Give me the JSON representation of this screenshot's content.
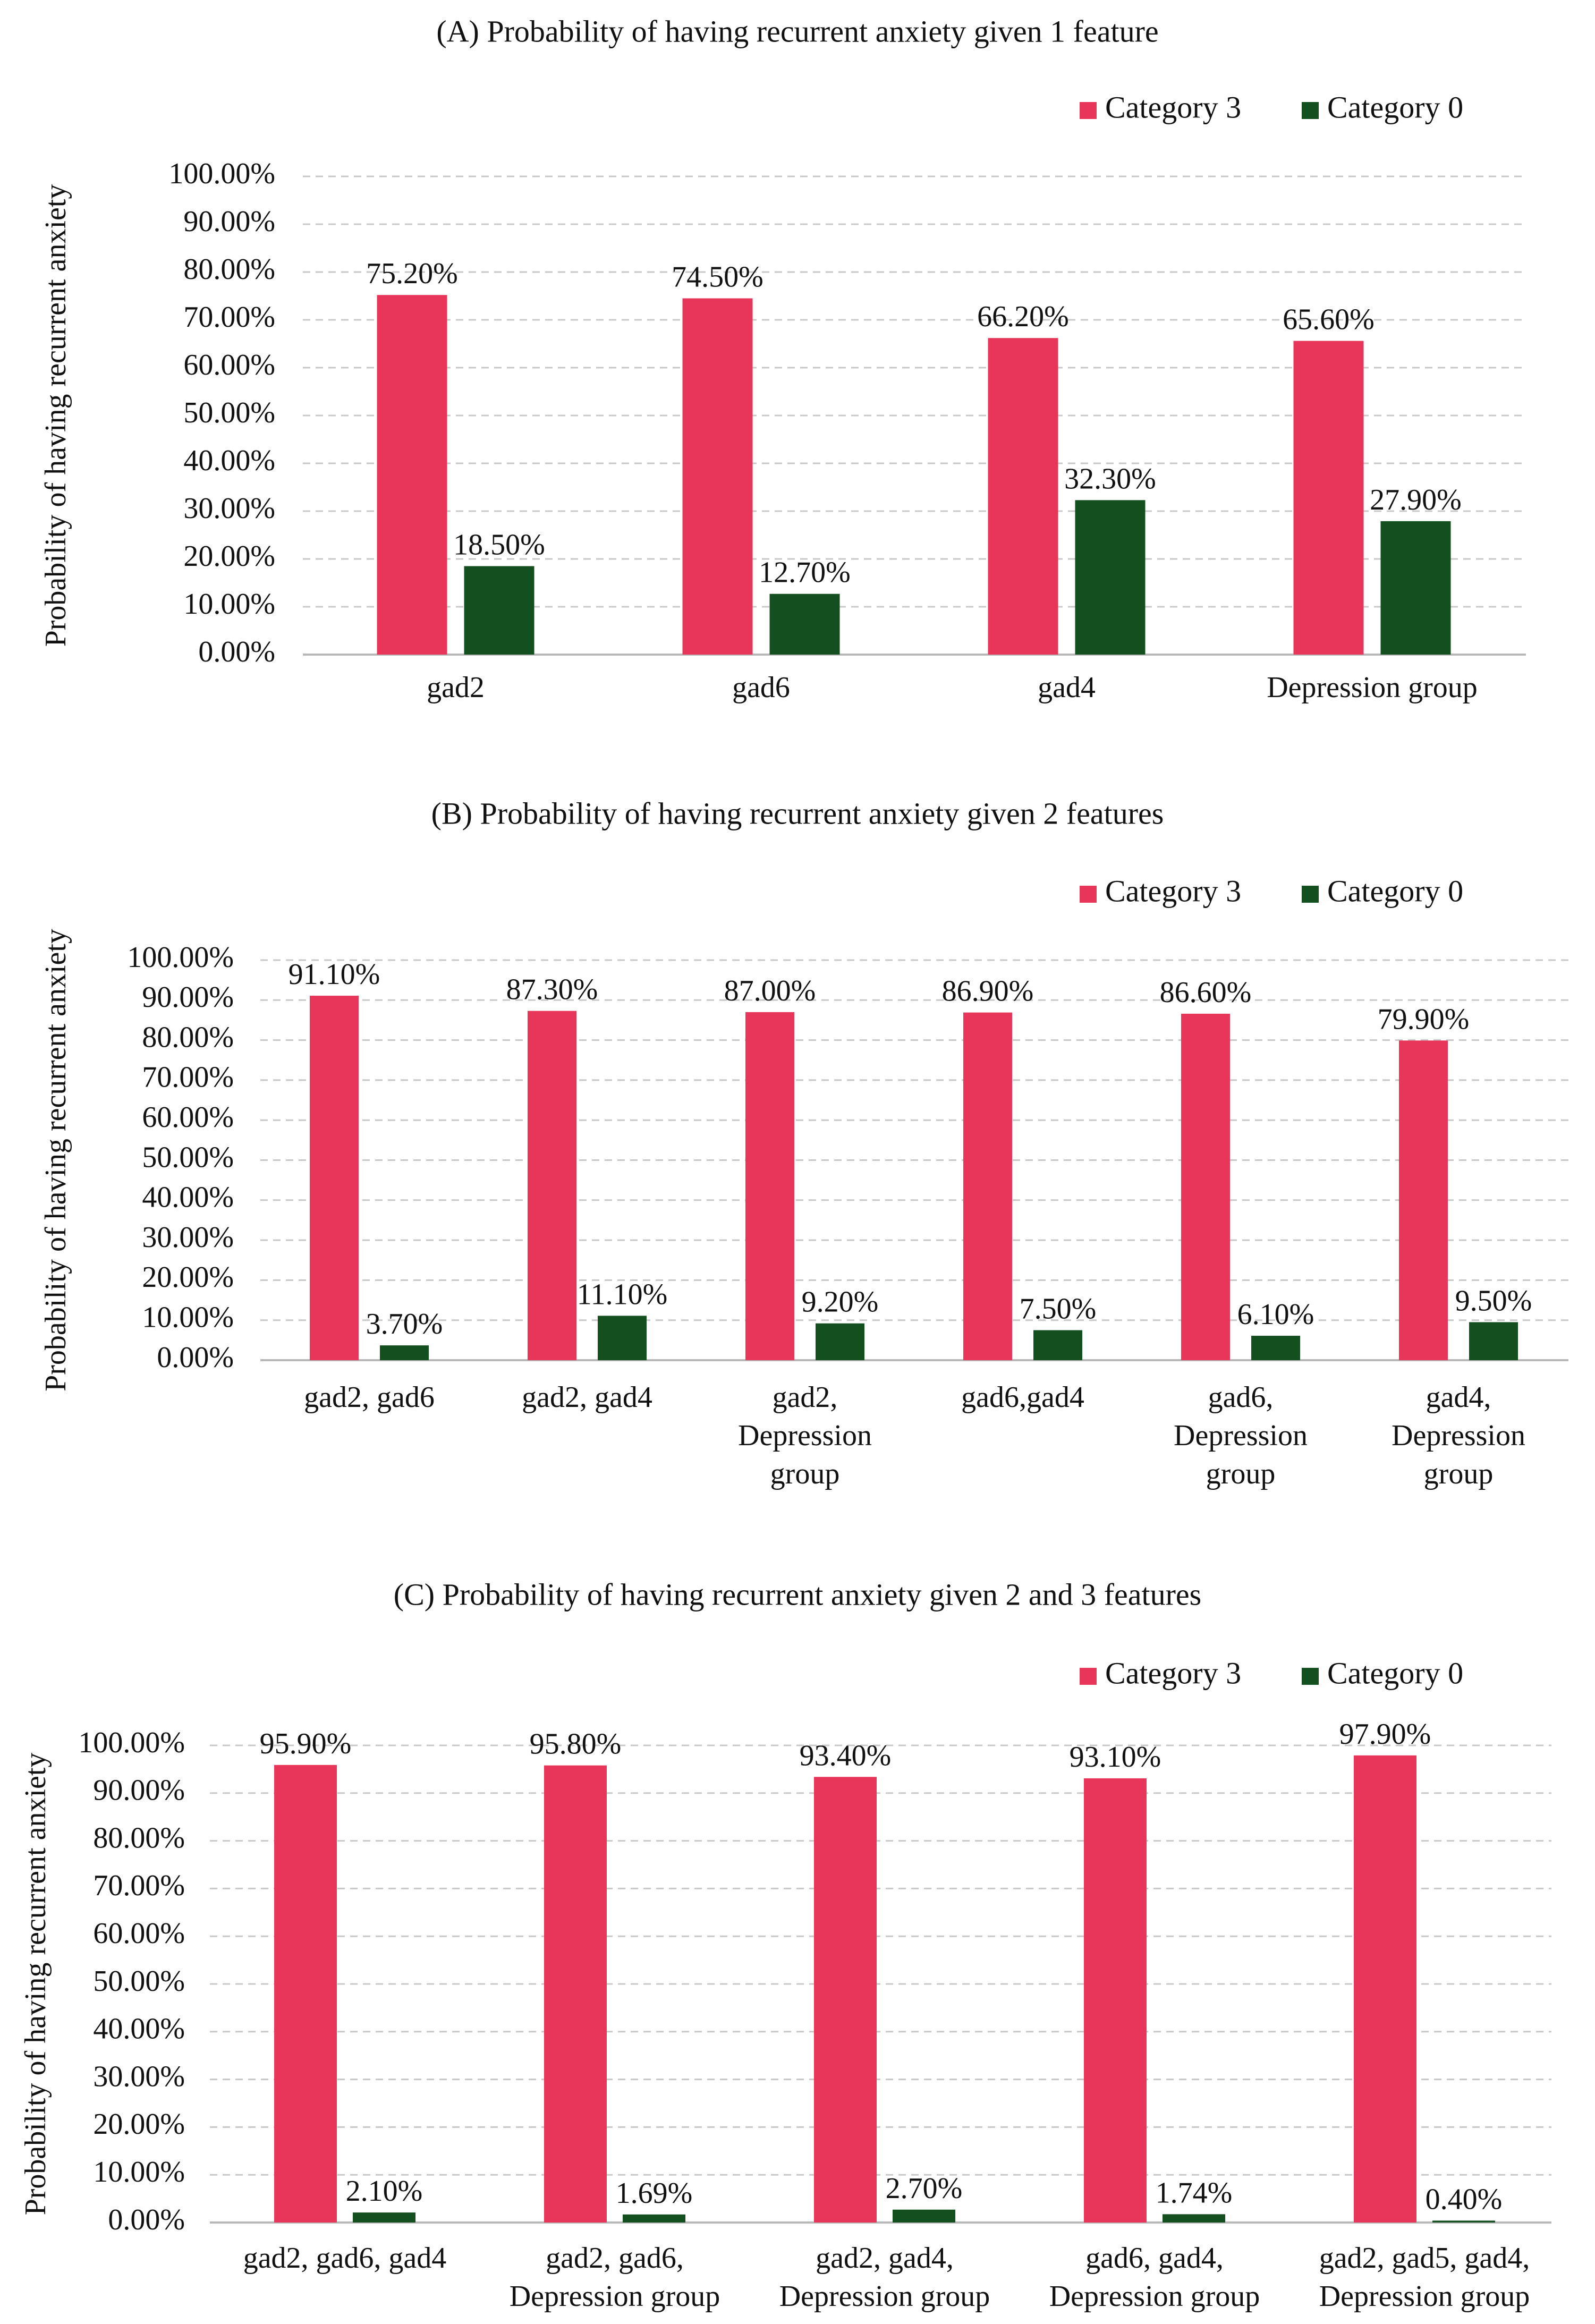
{
  "figure": {
    "colors": {
      "category_3": "#E8365A",
      "category_0": "#134F1F"
    }
  },
  "chart_data": [
    {
      "type": "bar",
      "title": "(A) Probability of having recurrent anxiety given 1 feature",
      "xlabel": "",
      "ylabel": "Probability of having recurrent anxiety",
      "ylim": [
        0,
        100
      ],
      "yticks": [
        "0.00%",
        "10.00%",
        "20.00%",
        "30.00%",
        "40.00%",
        "50.00%",
        "60.00%",
        "70.00%",
        "80.00%",
        "90.00%",
        "100.00%"
      ],
      "legend": {
        "position": "top-right",
        "entries": [
          "Category 3",
          "Category 0"
        ]
      },
      "categories": [
        [
          "gad2"
        ],
        [
          "gad6"
        ],
        [
          "gad4"
        ],
        [
          "Depression group"
        ]
      ],
      "series": [
        {
          "name": "Category 3",
          "values": [
            75.2,
            74.5,
            66.2,
            65.6
          ],
          "labels": [
            "75.20%",
            "74.50%",
            "66.20%",
            "65.60%"
          ]
        },
        {
          "name": "Category 0",
          "values": [
            18.5,
            12.7,
            32.3,
            27.9
          ],
          "labels": [
            "18.50%",
            "12.70%",
            "32.30%",
            "27.90%"
          ]
        }
      ]
    },
    {
      "type": "bar",
      "title": "(B) Probability of having recurrent anxiety given 2 features",
      "xlabel": "",
      "ylabel": "Probability of having recurrent anxiety",
      "ylim": [
        0,
        100
      ],
      "yticks": [
        "0.00%",
        "10.00%",
        "20.00%",
        "30.00%",
        "40.00%",
        "50.00%",
        "60.00%",
        "70.00%",
        "80.00%",
        "90.00%",
        "100.00%"
      ],
      "legend": {
        "position": "top-right",
        "entries": [
          "Category 3",
          "Category 0"
        ]
      },
      "categories": [
        [
          "gad2, gad6"
        ],
        [
          "gad2, gad4"
        ],
        [
          "gad2,",
          "Depression",
          "group"
        ],
        [
          "gad6,gad4"
        ],
        [
          "gad6,",
          "Depression",
          "group"
        ],
        [
          "gad4,",
          "Depression",
          "group"
        ]
      ],
      "series": [
        {
          "name": "Category 3",
          "values": [
            91.1,
            87.3,
            87.0,
            86.9,
            86.6,
            79.9
          ],
          "labels": [
            "91.10%",
            "87.30%",
            "87.00%",
            "86.90%",
            "86.60%",
            "79.90%"
          ]
        },
        {
          "name": "Category 0",
          "values": [
            3.7,
            11.1,
            9.2,
            7.5,
            6.1,
            9.5
          ],
          "labels": [
            "3.70%",
            "11.10%",
            "9.20%",
            "7.50%",
            "6.10%",
            "9.50%"
          ]
        }
      ]
    },
    {
      "type": "bar",
      "title": "(C) Probability of having recurrent anxiety given 2 and 3 features",
      "xlabel": "",
      "ylabel": "Probability of having recurrent anxiety",
      "ylim": [
        0,
        100
      ],
      "yticks": [
        "0.00%",
        "10.00%",
        "20.00%",
        "30.00%",
        "40.00%",
        "50.00%",
        "60.00%",
        "70.00%",
        "80.00%",
        "90.00%",
        "100.00%"
      ],
      "legend": {
        "position": "top-right",
        "entries": [
          "Category 3",
          "Category 0"
        ]
      },
      "categories": [
        [
          "gad2, gad6, gad4"
        ],
        [
          "gad2, gad6,",
          "Depression group"
        ],
        [
          "gad2, gad4,",
          "Depression group"
        ],
        [
          "gad6, gad4,",
          "Depression group"
        ],
        [
          "gad2, gad5, gad4,",
          "Depression group"
        ]
      ],
      "series": [
        {
          "name": "Category 3",
          "values": [
            95.9,
            95.8,
            93.4,
            93.1,
            97.9
          ],
          "labels": [
            "95.90%",
            "95.80%",
            "93.40%",
            "93.10%",
            "97.90%"
          ]
        },
        {
          "name": "Category 0",
          "values": [
            2.1,
            1.69,
            2.7,
            1.74,
            0.4
          ],
          "labels": [
            "2.10%",
            "1.69%",
            "2.70%",
            "1.74%",
            "0.40%"
          ]
        }
      ]
    }
  ]
}
